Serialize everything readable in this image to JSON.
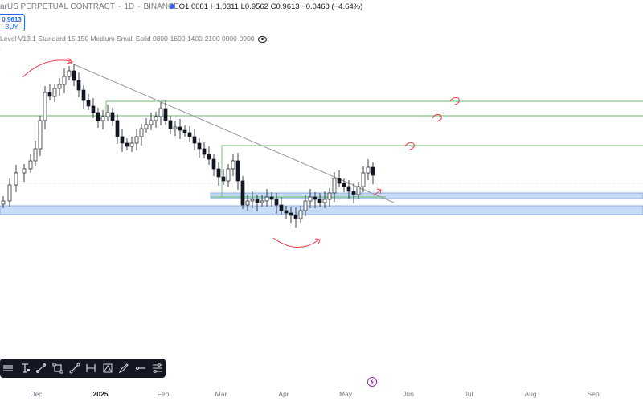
{
  "header": {
    "symbol_title": "arUS PERPETUAL CONTRACT",
    "timeframe": "1D",
    "exchange": "BINANCE",
    "open_label": "O",
    "open": "1.0081",
    "high_label": "H",
    "high": "1.0311",
    "low_label": "L",
    "low": "0.9562",
    "close_label": "C",
    "close": "0.9613",
    "change": "−0.0468 (−4.64%)"
  },
  "trade": {
    "price": "0.9613",
    "action": "BUY"
  },
  "indicator": {
    "label": "Level V13.1 Standard 15 150 Medium Small Solid 0800-1600 1400-2100 0000-0900"
  },
  "xaxis": {
    "labels": [
      "Dec",
      "2025",
      "Feb",
      "Mar",
      "Apr",
      "May",
      "Jun",
      "Jul",
      "Aug",
      "Sep"
    ]
  },
  "toolbar": {
    "icons": [
      "horizontal-lines-icon",
      "text-cursor-icon",
      "brush-icon",
      "rectangle-icon",
      "trend-line-icon",
      "date-range-icon",
      "triangle-pattern-icon",
      "pen-icon",
      "long-position-icon",
      "settings-lines-icon"
    ]
  },
  "colors": {
    "bull": "#ffffff",
    "bear": "#131722",
    "level_green": "#4caf50",
    "zone_blue": "#bbd2f5",
    "trend_gray": "#787b86",
    "annot_red": "#f23645",
    "brand_blue": "#2962ff"
  }
}
